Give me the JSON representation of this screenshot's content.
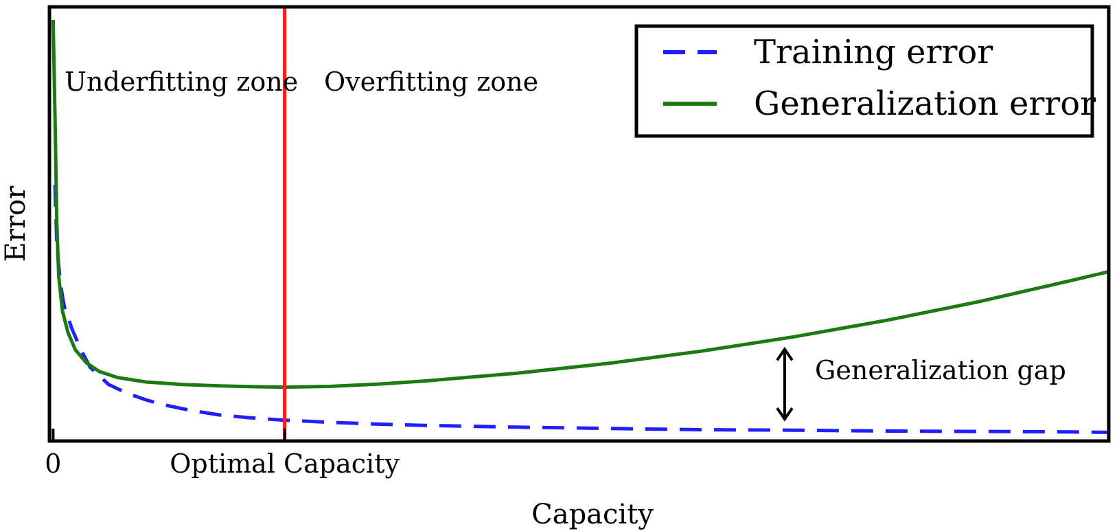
{
  "chart_data": {
    "type": "line",
    "title": "",
    "xlabel": "Capacity",
    "ylabel": "Error",
    "xlim": [
      -0.02,
      5.7
    ],
    "ylim": [
      0,
      1
    ],
    "x_ticks": [
      {
        "value": 0,
        "label": "0"
      },
      {
        "value": 1.25,
        "label": "Optimal Capacity"
      }
    ],
    "grid": false,
    "legend": {
      "position": "top-right"
    },
    "series": [
      {
        "name": "Training error",
        "style": "dashed",
        "color": "#1f1fff",
        "points": [
          [
            0.01,
            0.59
          ],
          [
            0.02,
            0.45
          ],
          [
            0.04,
            0.36
          ],
          [
            0.06,
            0.31
          ],
          [
            0.1,
            0.26
          ],
          [
            0.15,
            0.21
          ],
          [
            0.2,
            0.17
          ],
          [
            0.3,
            0.13
          ],
          [
            0.4,
            0.11
          ],
          [
            0.5,
            0.095
          ],
          [
            0.6,
            0.083
          ],
          [
            0.75,
            0.07
          ],
          [
            0.9,
            0.06
          ],
          [
            1.05,
            0.054
          ],
          [
            1.25,
            0.048
          ],
          [
            1.5,
            0.043
          ],
          [
            1.75,
            0.039
          ],
          [
            2.0,
            0.036
          ],
          [
            2.5,
            0.032
          ],
          [
            3.0,
            0.029
          ],
          [
            3.5,
            0.026
          ],
          [
            4.0,
            0.025
          ],
          [
            4.5,
            0.023
          ],
          [
            5.0,
            0.022
          ],
          [
            5.5,
            0.021
          ],
          [
            5.7,
            0.02
          ]
        ]
      },
      {
        "name": "Generalization error",
        "style": "solid",
        "color": "#1b7a12",
        "points": [
          [
            0.0,
            0.97
          ],
          [
            0.01,
            0.75
          ],
          [
            0.02,
            0.5
          ],
          [
            0.03,
            0.38
          ],
          [
            0.05,
            0.3
          ],
          [
            0.08,
            0.25
          ],
          [
            0.12,
            0.21
          ],
          [
            0.18,
            0.18
          ],
          [
            0.25,
            0.16
          ],
          [
            0.35,
            0.146
          ],
          [
            0.5,
            0.136
          ],
          [
            0.7,
            0.13
          ],
          [
            0.9,
            0.127
          ],
          [
            1.1,
            0.125
          ],
          [
            1.25,
            0.124
          ],
          [
            1.5,
            0.126
          ],
          [
            1.75,
            0.131
          ],
          [
            2.0,
            0.138
          ],
          [
            2.5,
            0.156
          ],
          [
            3.0,
            0.179
          ],
          [
            3.5,
            0.207
          ],
          [
            4.0,
            0.24
          ],
          [
            4.5,
            0.278
          ],
          [
            5.0,
            0.321
          ],
          [
            5.5,
            0.37
          ],
          [
            5.7,
            0.39
          ]
        ]
      }
    ],
    "annotations": [
      {
        "text": "Underfitting zone",
        "role": "zone-left"
      },
      {
        "text": "Overfitting zone",
        "role": "zone-right"
      },
      {
        "text": "Generalization gap",
        "role": "gap",
        "x": 3.95
      }
    ],
    "vline": {
      "x": 1.25,
      "color": "#ff1a1a"
    }
  }
}
